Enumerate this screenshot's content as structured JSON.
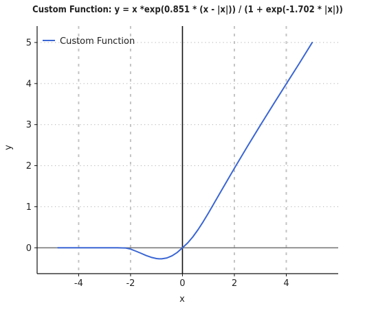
{
  "chart_data": {
    "type": "line",
    "title": "Custom Function: y = x *exp(0.851 * (x - |x|)) / (1 + exp(-1.702 * |x|))",
    "xlabel": "x",
    "ylabel": "y",
    "xlim": [
      -5.6,
      6.0
    ],
    "ylim": [
      -0.63,
      5.4
    ],
    "xticks": [
      -4,
      -2,
      0,
      2,
      4
    ],
    "yticks": [
      0,
      1,
      2,
      3,
      4,
      5
    ],
    "grid": {
      "x": "dashed",
      "y": "dotted"
    },
    "legend": {
      "position": "top-left"
    },
    "series": [
      {
        "name": "Custom Function",
        "color": "#3a66d4",
        "x": [
          -4.8,
          -4.5,
          -4.0,
          -3.5,
          -3.0,
          -2.5,
          -2.2,
          -2.0,
          -1.8,
          -1.6,
          -1.4,
          -1.2,
          -1.0,
          -0.9,
          -0.8,
          -0.6,
          -0.4,
          -0.2,
          0.0,
          0.2,
          0.4,
          0.6,
          0.8,
          1.0,
          1.5,
          2.0,
          2.5,
          3.0,
          3.5,
          4.0,
          4.5,
          5.0
        ],
        "y": [
          0.0,
          0.0,
          0.0,
          0.0,
          0.0,
          -0.0004,
          -0.0049,
          -0.0313,
          -0.081,
          -0.133,
          -0.188,
          -0.233,
          -0.262,
          -0.268,
          -0.268,
          -0.248,
          -0.195,
          -0.113,
          0.0,
          0.117,
          0.266,
          0.441,
          0.637,
          0.846,
          1.394,
          1.936,
          2.466,
          2.983,
          3.491,
          3.992,
          4.49,
          5.0
        ]
      }
    ]
  }
}
